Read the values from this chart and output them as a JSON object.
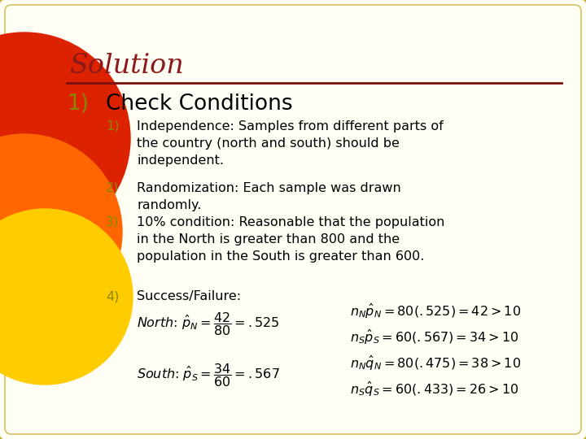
{
  "bg_color": "#fffef5",
  "border_color_outer": "#c8b030",
  "border_color_inner": "#d4c060",
  "title": "Solution",
  "title_color": "#8b1a1a",
  "divider_color": "#7a1010",
  "main_number": "1)",
  "main_heading": "Check Conditions",
  "main_heading_color": "#000000",
  "item_number_color": "#888800",
  "items": [
    {
      "num": "1)",
      "text": "Independence: Samples from different parts of\nthe country (north and south) should be\nindependent."
    },
    {
      "num": "2)",
      "text": "Randomization: Each sample was drawn\nrandomly."
    },
    {
      "num": "3)",
      "text": "10% condition: Reasonable that the population\nin the North is greater than 800 and the\npopulation in the South is greater than 600."
    },
    {
      "num": "4)",
      "text": "Success/Failure:"
    }
  ],
  "right_formulas": [
    "$n_N\\hat{p}_N = 80(.525) = 42 > 10$",
    "$n_S\\hat{p}_S = 60(.567) = 34 > 10$",
    "$n_N\\hat{q}_N = 80(.475) = 38 > 10$",
    "$n_S\\hat{q}_S = 60(.433) = 26 > 10$"
  ],
  "circle_red": "#dd2200",
  "circle_orange": "#ff6600",
  "circle_yellow": "#ffcc00",
  "font_size_title": 24,
  "font_size_main": 19,
  "font_size_body": 11.5
}
